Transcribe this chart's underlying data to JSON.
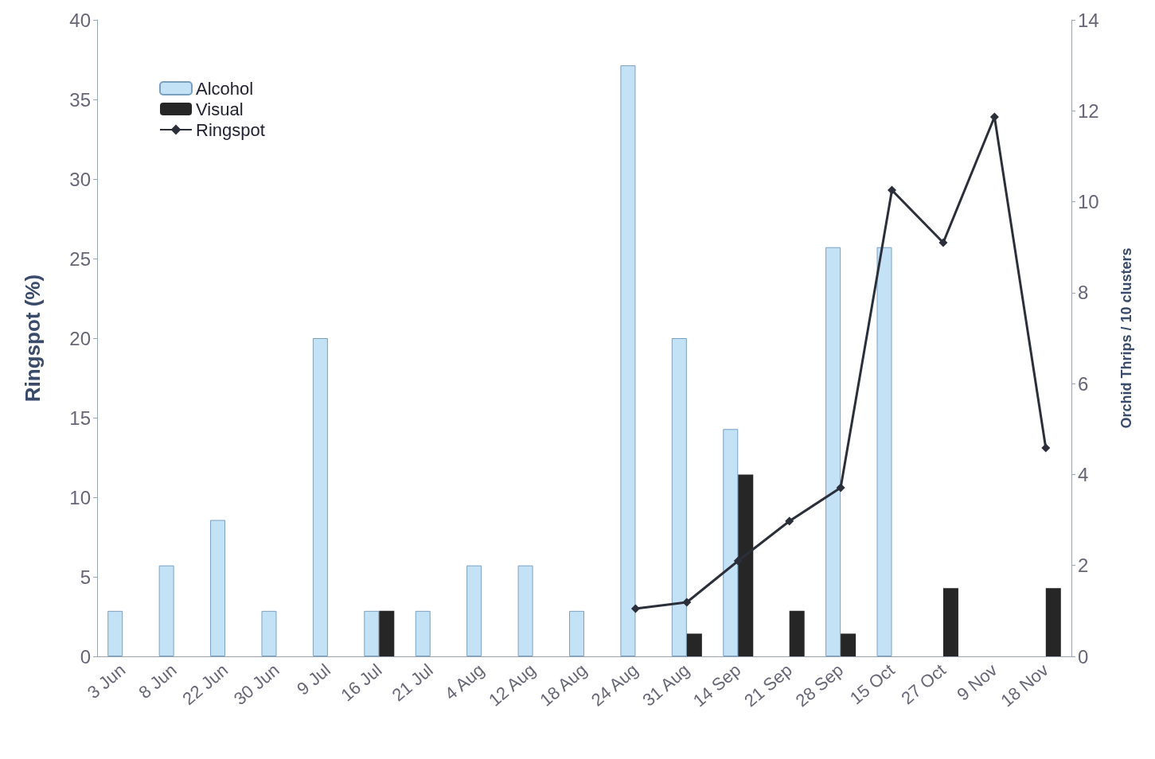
{
  "chart_data": {
    "type": "bar",
    "ylabel": "Ringspot (%)",
    "y2label": "Orchid Thrips / 10 clusters",
    "categories": [
      "3 Jun",
      "8 Jun",
      "22 Jun",
      "30 Jun",
      "9 Jul",
      "16 Jul",
      "21 Jul",
      "4 Aug",
      "12 Aug",
      "18 Aug",
      "24 Aug",
      "31 Aug",
      "14 Sep",
      "21 Sep",
      "28 Sep",
      "15 Oct",
      "27 Oct",
      "9 Nov",
      "18 Nov"
    ],
    "series": [
      {
        "name": "Alcohol",
        "axis": "y2",
        "color": "#c4e2f6",
        "values": [
          1,
          2,
          3,
          1,
          7,
          1,
          1,
          2,
          2,
          1,
          13,
          7,
          5,
          null,
          9,
          9,
          null,
          null,
          null
        ]
      },
      {
        "name": "Visual",
        "axis": "y2",
        "color": "#262626",
        "values": [
          null,
          null,
          null,
          null,
          null,
          1,
          null,
          null,
          null,
          null,
          null,
          0.5,
          4,
          1,
          0.5,
          null,
          1.5,
          null,
          1.5
        ]
      },
      {
        "name": "Ringspot",
        "type": "line",
        "color": "#2b2f3a",
        "marker": "diamond",
        "values": [
          null,
          null,
          null,
          null,
          null,
          null,
          null,
          null,
          null,
          null,
          3,
          3.4,
          6,
          8.5,
          10.6,
          29.3,
          26,
          33.9,
          13.1
        ]
      }
    ],
    "ylim": [
      0,
      40
    ],
    "yticks": [
      0,
      5,
      10,
      15,
      20,
      25,
      30,
      35,
      40
    ],
    "y2lim": [
      0,
      14
    ],
    "y2ticks": [
      0,
      2,
      4,
      6,
      8,
      10,
      12,
      14
    ],
    "legend": "top left",
    "grid": false
  }
}
